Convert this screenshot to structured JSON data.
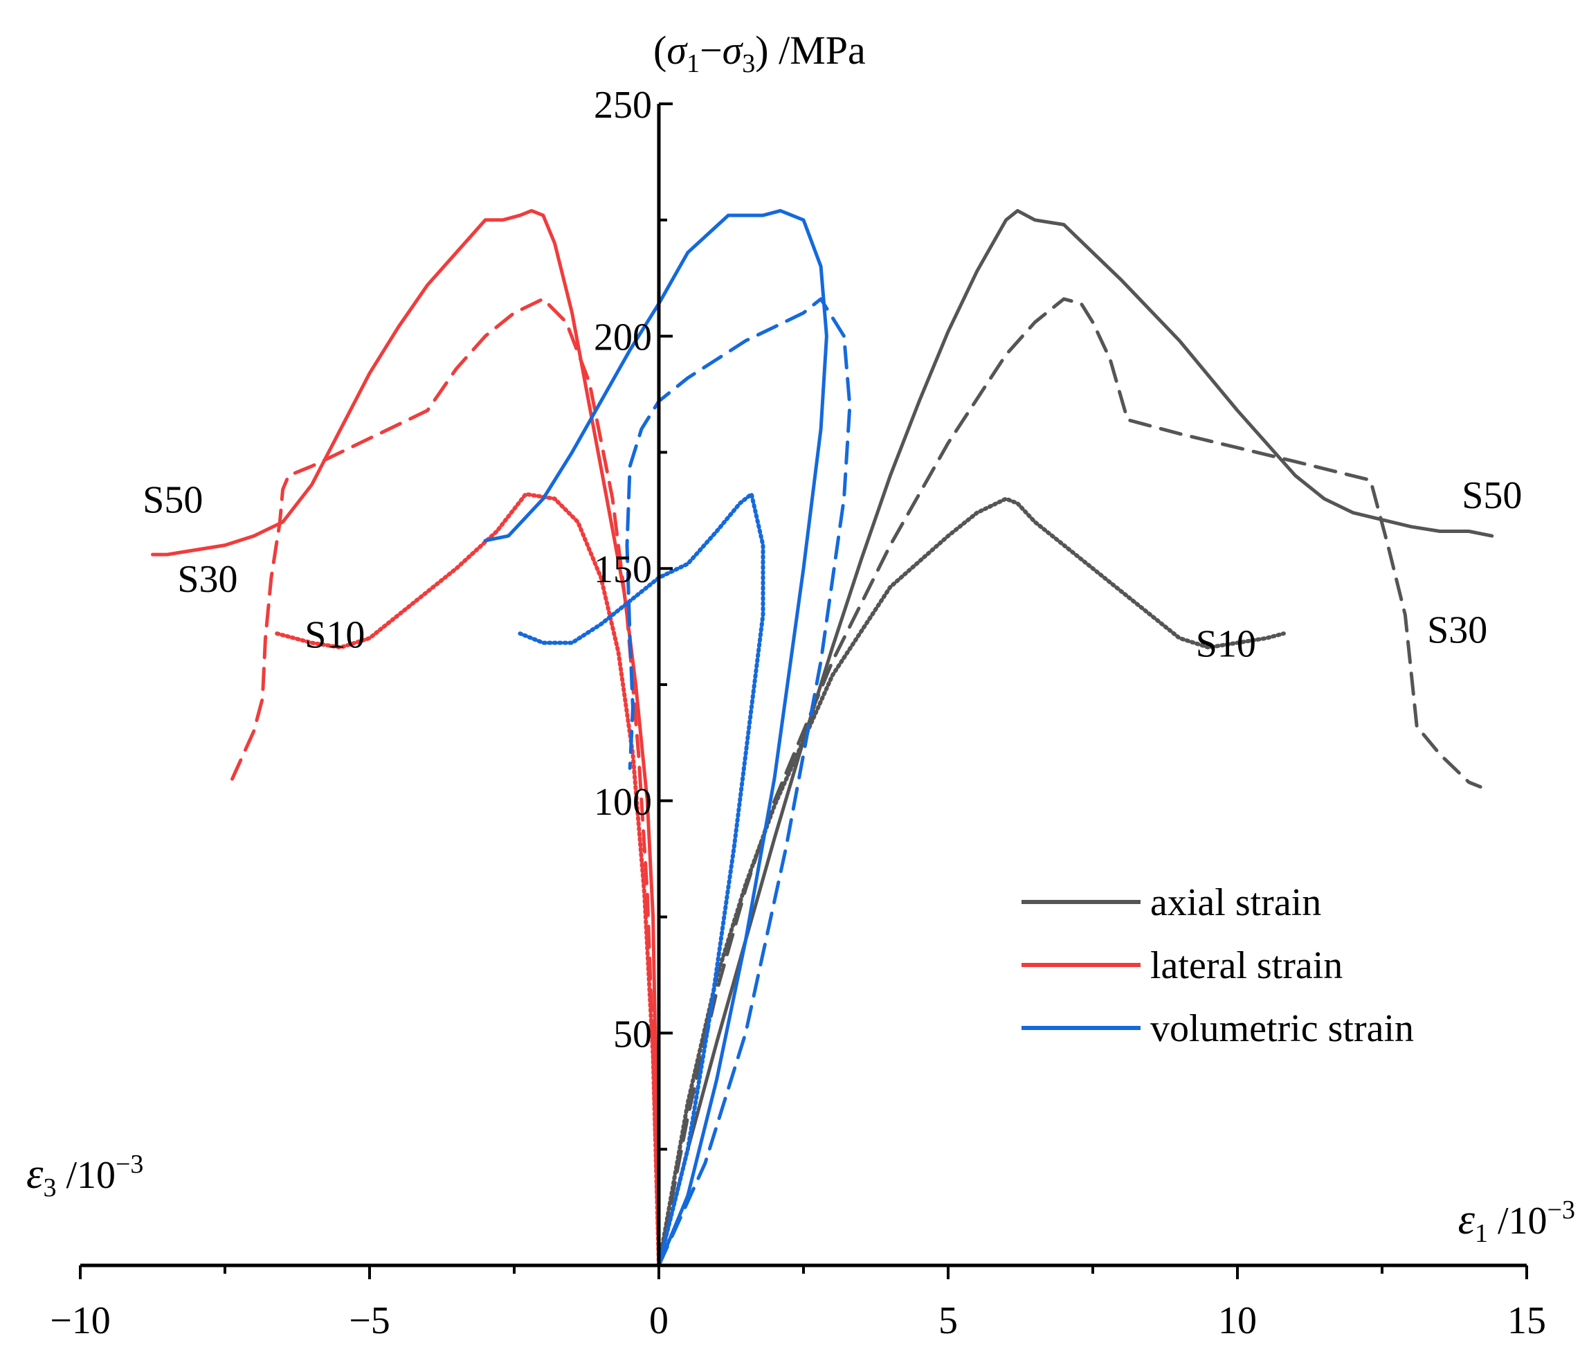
{
  "chart_data": {
    "type": "line",
    "title": "",
    "y_title": {
      "open": "(",
      "s1": "σ",
      "sub1": "1",
      "minus": "−",
      "s3": "σ",
      "sub3": "3",
      "close": ")",
      "unit": " /MPa"
    },
    "x_right_title": {
      "sym": "ε",
      "sub": "1",
      "unit": " /10",
      "exp": "−3"
    },
    "x_left_title": {
      "sym": "ε",
      "sub": "3",
      "unit": " /10",
      "exp": "−3"
    },
    "xlim": [
      -10,
      15
    ],
    "ylim": [
      0,
      250
    ],
    "x_ticks": [
      {
        "v": -10,
        "label": "−10"
      },
      {
        "v": -5,
        "label": "−5"
      },
      {
        "v": 0,
        "label": "0"
      },
      {
        "v": 5,
        "label": "5"
      },
      {
        "v": 10,
        "label": "10"
      },
      {
        "v": 15,
        "label": "15"
      }
    ],
    "x_minor_ticks": [
      -7.5,
      -2.5,
      2.5,
      7.5,
      12.5
    ],
    "y_ticks": [
      {
        "v": 50,
        "label": "50"
      },
      {
        "v": 100,
        "label": "100"
      },
      {
        "v": 150,
        "label": "150"
      },
      {
        "v": 200,
        "label": "200"
      },
      {
        "v": 250,
        "label": "250"
      }
    ],
    "y_minor_ticks": [
      25,
      75,
      125,
      175,
      225
    ],
    "colors": {
      "axial": "#555555",
      "lateral": "#f03c3c",
      "volumetric": "#1469dc"
    },
    "legend": {
      "position": "lower-right",
      "entries": [
        {
          "key": "axial",
          "label": "axial strain"
        },
        {
          "key": "lateral",
          "label": "lateral strain"
        },
        {
          "key": "volumetric",
          "label": "volumetric strain"
        }
      ]
    },
    "annotations": [
      {
        "text": "S50",
        "x": -8.4,
        "y": 162
      },
      {
        "text": "S30",
        "x": -7.8,
        "y": 145
      },
      {
        "text": "S10",
        "x": -5.6,
        "y": 133
      },
      {
        "text": "S50",
        "x": 14.4,
        "y": 163
      },
      {
        "text": "S30",
        "x": 13.8,
        "y": 134
      },
      {
        "text": "S10",
        "x": 9.8,
        "y": 131
      }
    ],
    "series": [
      {
        "name": "S50 axial",
        "group": "axial",
        "style": "solid",
        "points": [
          [
            0,
            0
          ],
          [
            0.5,
            25
          ],
          [
            1,
            48
          ],
          [
            1.5,
            70
          ],
          [
            2,
            92
          ],
          [
            2.5,
            113
          ],
          [
            3,
            133
          ],
          [
            3.5,
            152
          ],
          [
            4,
            170
          ],
          [
            4.5,
            186
          ],
          [
            5,
            201
          ],
          [
            5.5,
            214
          ],
          [
            6,
            225
          ],
          [
            6.2,
            227
          ],
          [
            6.5,
            225
          ],
          [
            7,
            224
          ],
          [
            7.5,
            218
          ],
          [
            8,
            212
          ],
          [
            9,
            199
          ],
          [
            10,
            184
          ],
          [
            10.5,
            177
          ],
          [
            11,
            170
          ],
          [
            11.5,
            165
          ],
          [
            12,
            162
          ],
          [
            13,
            159
          ],
          [
            13.5,
            158
          ],
          [
            14,
            158
          ],
          [
            14.4,
            157
          ]
        ]
      },
      {
        "name": "S30 axial",
        "group": "axial",
        "style": "dashed",
        "points": [
          [
            0,
            0
          ],
          [
            0.5,
            32
          ],
          [
            1,
            59
          ],
          [
            1.5,
            81
          ],
          [
            2,
            100
          ],
          [
            3,
            130
          ],
          [
            4,
            155
          ],
          [
            5,
            177
          ],
          [
            6,
            196
          ],
          [
            6.5,
            203
          ],
          [
            7,
            208
          ],
          [
            7.3,
            207
          ],
          [
            7.5,
            203
          ],
          [
            7.8,
            195
          ],
          [
            8.1,
            182
          ],
          [
            9,
            179
          ],
          [
            10,
            176
          ],
          [
            11,
            173
          ],
          [
            12.3,
            169
          ],
          [
            12.6,
            155
          ],
          [
            12.9,
            140
          ],
          [
            13.1,
            116
          ],
          [
            13.5,
            110
          ],
          [
            14,
            104
          ],
          [
            14.2,
            103
          ]
        ]
      },
      {
        "name": "S10 axial",
        "group": "axial",
        "style": "dotted",
        "points": [
          [
            0,
            0
          ],
          [
            0.5,
            35
          ],
          [
            1,
            62
          ],
          [
            1.5,
            82
          ],
          [
            2,
            99
          ],
          [
            3,
            127
          ],
          [
            4,
            146
          ],
          [
            5,
            157
          ],
          [
            5.5,
            162
          ],
          [
            6,
            165
          ],
          [
            6.2,
            164
          ],
          [
            6.5,
            160
          ],
          [
            7,
            155
          ],
          [
            8,
            145
          ],
          [
            9,
            135
          ],
          [
            9.5,
            133
          ],
          [
            10,
            134
          ],
          [
            10.5,
            135
          ],
          [
            10.8,
            136
          ]
        ]
      },
      {
        "name": "S50 lateral",
        "group": "lateral",
        "style": "solid",
        "points": [
          [
            0,
            0
          ],
          [
            -0.05,
            40
          ],
          [
            -0.1,
            75
          ],
          [
            -0.2,
            100
          ],
          [
            -0.4,
            125
          ],
          [
            -0.6,
            145
          ],
          [
            -0.9,
            165
          ],
          [
            -1.2,
            185
          ],
          [
            -1.5,
            205
          ],
          [
            -1.8,
            220
          ],
          [
            -2.0,
            226
          ],
          [
            -2.2,
            227
          ],
          [
            -2.4,
            226
          ],
          [
            -2.7,
            225
          ],
          [
            -3.0,
            225
          ],
          [
            -3.5,
            218
          ],
          [
            -4.0,
            211
          ],
          [
            -4.5,
            202
          ],
          [
            -5.0,
            192
          ],
          [
            -5.5,
            180
          ],
          [
            -6.0,
            168
          ],
          [
            -6.5,
            160
          ],
          [
            -7.0,
            157
          ],
          [
            -7.5,
            155
          ],
          [
            -8.0,
            154
          ],
          [
            -8.5,
            153
          ],
          [
            -8.75,
            153
          ]
        ]
      },
      {
        "name": "S30 lateral",
        "group": "lateral",
        "style": "dashed",
        "points": [
          [
            0,
            0
          ],
          [
            -0.1,
            45
          ],
          [
            -0.2,
            80
          ],
          [
            -0.35,
            110
          ],
          [
            -0.55,
            140
          ],
          [
            -0.8,
            165
          ],
          [
            -1.2,
            190
          ],
          [
            -1.6,
            203
          ],
          [
            -2.0,
            208
          ],
          [
            -2.5,
            205
          ],
          [
            -3.0,
            200
          ],
          [
            -3.5,
            193
          ],
          [
            -4.0,
            184
          ],
          [
            -5.0,
            178
          ],
          [
            -6.0,
            172
          ],
          [
            -6.4,
            170
          ],
          [
            -6.5,
            167
          ],
          [
            -6.55,
            160
          ],
          [
            -6.7,
            148
          ],
          [
            -6.8,
            135
          ],
          [
            -6.85,
            122
          ],
          [
            -7.0,
            115
          ],
          [
            -7.4,
            104
          ]
        ]
      },
      {
        "name": "S10 lateral",
        "group": "lateral",
        "style": "dotted",
        "points": [
          [
            0,
            0
          ],
          [
            -0.1,
            45
          ],
          [
            -0.25,
            80
          ],
          [
            -0.45,
            110
          ],
          [
            -0.7,
            132
          ],
          [
            -1.0,
            148
          ],
          [
            -1.4,
            160
          ],
          [
            -1.8,
            165
          ],
          [
            -2.3,
            166
          ],
          [
            -2.8,
            158
          ],
          [
            -3.5,
            150
          ],
          [
            -4.5,
            140
          ],
          [
            -5.0,
            135
          ],
          [
            -5.5,
            133
          ],
          [
            -6.0,
            134
          ],
          [
            -6.6,
            136
          ]
        ]
      },
      {
        "name": "S50 volumetric",
        "group": "volumetric",
        "style": "solid",
        "points": [
          [
            0,
            0
          ],
          [
            0.5,
            15
          ],
          [
            1,
            40
          ],
          [
            1.5,
            70
          ],
          [
            2,
            105
          ],
          [
            2.5,
            150
          ],
          [
            2.8,
            180
          ],
          [
            2.9,
            200
          ],
          [
            2.8,
            215
          ],
          [
            2.5,
            225
          ],
          [
            2.1,
            227
          ],
          [
            1.8,
            226
          ],
          [
            1.2,
            226
          ],
          [
            0.5,
            218
          ],
          [
            0,
            207
          ],
          [
            -0.5,
            197
          ],
          [
            -1.0,
            186
          ],
          [
            -1.5,
            175
          ],
          [
            -2.0,
            165
          ],
          [
            -2.6,
            157
          ],
          [
            -3.0,
            156
          ]
        ]
      },
      {
        "name": "S30 volumetric",
        "group": "volumetric",
        "style": "dashed",
        "points": [
          [
            0,
            0
          ],
          [
            0.8,
            22
          ],
          [
            1.5,
            50
          ],
          [
            2.2,
            90
          ],
          [
            2.8,
            130
          ],
          [
            3.2,
            165
          ],
          [
            3.3,
            185
          ],
          [
            3.2,
            200
          ],
          [
            2.8,
            208
          ],
          [
            2.5,
            205
          ],
          [
            2.0,
            202
          ],
          [
            1.5,
            199
          ],
          [
            1.0,
            195
          ],
          [
            0.5,
            191
          ],
          [
            0,
            186
          ],
          [
            -0.3,
            180
          ],
          [
            -0.5,
            172
          ],
          [
            -0.55,
            155
          ],
          [
            -0.5,
            135
          ],
          [
            -0.45,
            120
          ],
          [
            -0.5,
            107
          ]
        ]
      },
      {
        "name": "S10 volumetric",
        "group": "volumetric",
        "style": "dotted",
        "points": [
          [
            0,
            0
          ],
          [
            0.5,
            25
          ],
          [
            0.9,
            55
          ],
          [
            1.3,
            90
          ],
          [
            1.6,
            120
          ],
          [
            1.8,
            140
          ],
          [
            1.8,
            155
          ],
          [
            1.6,
            166
          ],
          [
            1.4,
            164
          ],
          [
            1.0,
            158
          ],
          [
            0.5,
            151
          ],
          [
            0,
            148
          ],
          [
            -0.5,
            143
          ],
          [
            -1.0,
            138
          ],
          [
            -1.5,
            134
          ],
          [
            -2.0,
            134
          ],
          [
            -2.4,
            136
          ]
        ]
      }
    ]
  }
}
